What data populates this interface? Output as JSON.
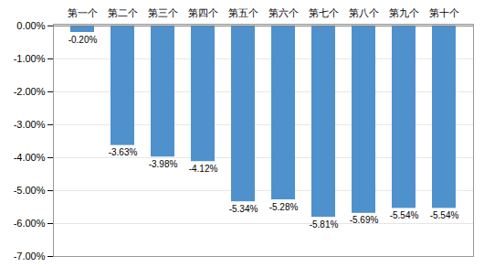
{
  "chart_data": {
    "type": "bar",
    "categories": [
      "第一个",
      "第二个",
      "第三个",
      "第四个",
      "第五个",
      "第六个",
      "第七个",
      "第八个",
      "第九个",
      "第十个"
    ],
    "values": [
      -0.002,
      -0.0363,
      -0.0398,
      -0.0412,
      -0.0534,
      -0.0528,
      -0.0581,
      -0.0569,
      -0.0554,
      -0.0554
    ],
    "value_labels": [
      "-0.20%",
      "-3.63%",
      "-3.98%",
      "-4.12%",
      "-5.34%",
      "-5.28%",
      "-5.81%",
      "-5.69%",
      "-5.54%",
      "-5.54%"
    ],
    "data_labels": true,
    "color": "#4F91CD",
    "ylim": [
      -0.07,
      0.0005
    ],
    "yticks": [
      {
        "value": 0.0,
        "label": "0.00%"
      },
      {
        "value": -0.01,
        "label": "-1.00%"
      },
      {
        "value": -0.02,
        "label": "-2.00%"
      },
      {
        "value": -0.03,
        "label": "-3.00%"
      },
      {
        "value": -0.04,
        "label": "-4.00%"
      },
      {
        "value": -0.05,
        "label": "-5.00%"
      },
      {
        "value": -0.06,
        "label": "-6.00%"
      },
      {
        "value": -0.07,
        "label": "-7.00%"
      }
    ],
    "grid": true
  }
}
